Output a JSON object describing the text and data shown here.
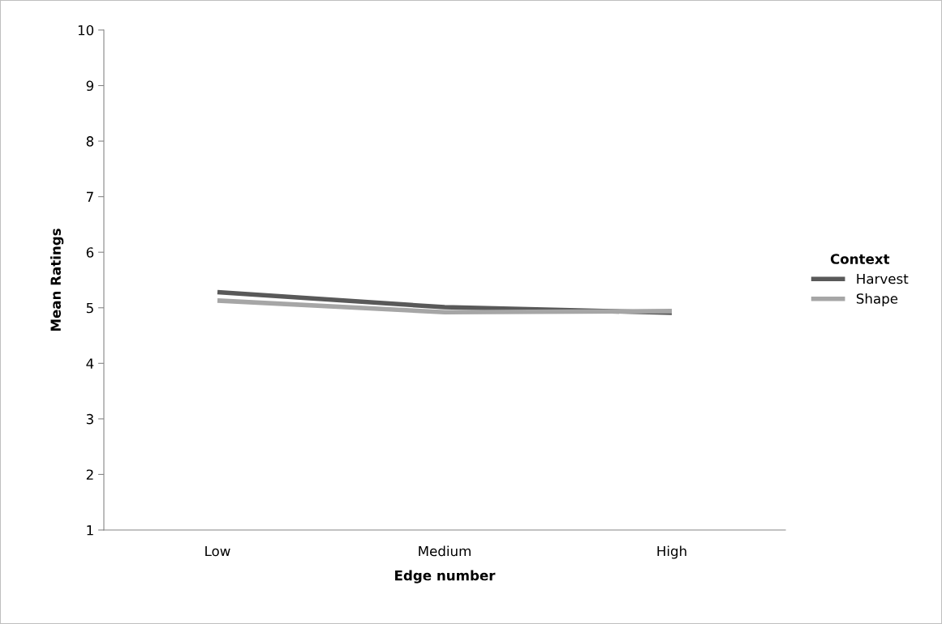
{
  "chart_data": {
    "type": "line",
    "xlabel": "Edge number",
    "ylabel": "Mean Ratings",
    "legend_title": "Context",
    "categories": [
      "Low",
      "Medium",
      "High"
    ],
    "series": [
      {
        "name": "Harvest",
        "color": "#595959",
        "values": [
          5.28,
          5.01,
          4.91
        ]
      },
      {
        "name": "Shape",
        "color": "#a6a6a6",
        "values": [
          5.13,
          4.92,
          4.94
        ]
      }
    ],
    "ylim": [
      1,
      10
    ],
    "yticks": [
      1,
      2,
      3,
      4,
      5,
      6,
      7,
      8,
      9,
      10
    ],
    "grid": false,
    "legend": "right",
    "marker": "none",
    "line_style": "solid"
  }
}
